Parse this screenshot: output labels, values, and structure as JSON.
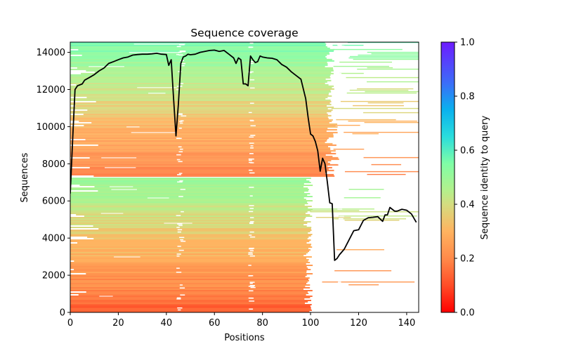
{
  "chart_data": {
    "type": "heatmap",
    "title": "Sequence coverage",
    "xlabel": "Positions",
    "ylabel": "Sequences",
    "xlim": [
      0,
      145
    ],
    "ylim": [
      0,
      14550
    ],
    "xticks": [
      0,
      20,
      40,
      60,
      80,
      100,
      120,
      140
    ],
    "yticks": [
      0,
      2000,
      4000,
      6000,
      8000,
      10000,
      12000,
      14000
    ],
    "grid": false,
    "colorbar": {
      "label": "Sequence identity to query",
      "range": [
        0.0,
        1.0
      ],
      "ticks": [
        "0.0",
        "0.2",
        "0.4",
        "0.6",
        "0.8",
        "1.0"
      ],
      "colormap": "rainbow_r",
      "colors": [
        "#ff0000",
        "#ff6a37",
        "#ffb360",
        "#d4dd80",
        "#aef48f",
        "#80fea6",
        "#2adddd",
        "#0ab1ee",
        "#3c6cf8",
        "#6d1bff"
      ]
    },
    "alignment_bands": [
      {
        "y_from": 0,
        "y_to": 7300,
        "identity_from": 0.12,
        "identity_to": 0.52,
        "x_end": 99,
        "x_tail_end": 145,
        "tail_density": 0.25
      },
      {
        "y_from": 7300,
        "y_to": 14550,
        "identity_from": 0.16,
        "identity_to": 0.56,
        "x_end": 108,
        "x_tail_end": 145,
        "tail_density": 0.45
      }
    ],
    "gaps": [
      {
        "x_from": 44,
        "x_to": 47,
        "note": "column gap"
      },
      {
        "x_from": 74,
        "x_to": 76,
        "note": "column gap"
      },
      {
        "x_from": 111,
        "x_to": 113,
        "note": "column gap"
      }
    ],
    "coverage_line": {
      "color": "#000000",
      "x": [
        0,
        1,
        2,
        3,
        4,
        5,
        6,
        8,
        10,
        12,
        14,
        16,
        18,
        20,
        22,
        24,
        26,
        28,
        30,
        32,
        34,
        36,
        38,
        40,
        41,
        42,
        43,
        44,
        45,
        46,
        47,
        48,
        49,
        50,
        52,
        54,
        56,
        58,
        60,
        62,
        64,
        66,
        68,
        69,
        70,
        71,
        72,
        73,
        74,
        75,
        76,
        77,
        78,
        79,
        80,
        82,
        84,
        86,
        88,
        90,
        92,
        94,
        96,
        98,
        99,
        100,
        101,
        102,
        103,
        104,
        105,
        106,
        107,
        108,
        109,
        110,
        111,
        112,
        114,
        116,
        118,
        120,
        121,
        122,
        124,
        126,
        128,
        130,
        131,
        132,
        133,
        134,
        135,
        136,
        138,
        140,
        142,
        144
      ],
      "y": [
        6400,
        9300,
        12000,
        12200,
        12250,
        12300,
        12500,
        12650,
        12800,
        13000,
        13150,
        13400,
        13500,
        13600,
        13700,
        13750,
        13850,
        13880,
        13900,
        13900,
        13920,
        13950,
        13900,
        13880,
        13300,
        13600,
        11500,
        9500,
        11200,
        13400,
        13750,
        13800,
        13900,
        13870,
        13900,
        14000,
        14050,
        14100,
        14120,
        14050,
        14100,
        13900,
        13700,
        13400,
        13700,
        13600,
        12300,
        12300,
        12200,
        13800,
        13600,
        13450,
        13500,
        13800,
        13750,
        13700,
        13680,
        13600,
        13350,
        13200,
        12950,
        12750,
        12550,
        11500,
        10500,
        9600,
        9500,
        9200,
        8700,
        7600,
        8300,
        8000,
        7000,
        5900,
        5850,
        2800,
        2900,
        3100,
        3400,
        3900,
        4400,
        4450,
        4700,
        4950,
        5100,
        5120,
        5150,
        4900,
        5250,
        5250,
        5650,
        5550,
        5450,
        5450,
        5550,
        5500,
        5300,
        4850
      ]
    }
  }
}
